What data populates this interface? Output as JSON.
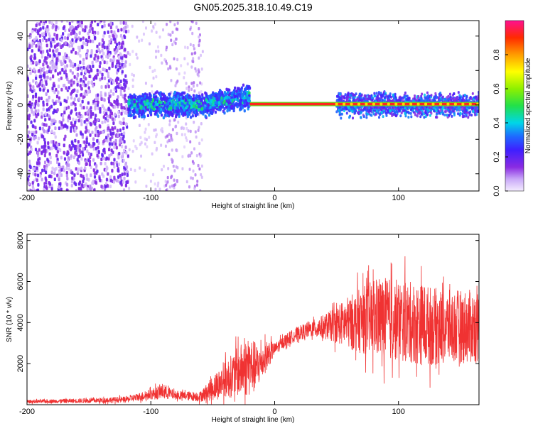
{
  "title": "GN05.2025.318.10.49.C19",
  "chart_data": [
    {
      "type": "heatmap",
      "name": "spectrogram",
      "xlabel": "Height of straight line (km)",
      "ylabel": "Frequency (Hz)",
      "xlim": [
        -200,
        165
      ],
      "ylim": [
        -50,
        49
      ],
      "xticks": [
        -200,
        -100,
        0,
        100
      ],
      "yticks": [
        -40,
        -20,
        0,
        20,
        40
      ],
      "colorbar": {
        "label": "Normalized spectral amplitude",
        "range": [
          0,
          1
        ],
        "ticks": [
          0.0,
          0.2,
          0.4,
          0.6,
          0.8
        ]
      },
      "regions": [
        {
          "x_range": [
            -200,
            -118
          ],
          "description_level": "sparse noise",
          "amplitude": [
            0.1,
            0.2
          ]
        },
        {
          "x_range": [
            -118,
            -20
          ],
          "freq_band": [
            -8,
            8
          ],
          "amplitude": [
            0.2,
            0.5
          ]
        },
        {
          "x_range": [
            -20,
            165
          ],
          "freq_band": [
            -1,
            1
          ],
          "amplitude": [
            0.8,
            1.0
          ]
        }
      ]
    },
    {
      "type": "line",
      "name": "snr",
      "xlabel": "Height of straight line (km)",
      "ylabel": "SNR (10 * v/v)",
      "xlim": [
        -200,
        165
      ],
      "ylim": [
        0,
        8300
      ],
      "xticks": [
        -200,
        -100,
        0,
        100
      ],
      "yticks": [
        2000,
        4000,
        6000,
        8000
      ],
      "color": "#f03232",
      "series_envelope": {
        "x": [
          -200,
          -150,
          -120,
          -100,
          -90,
          -80,
          -60,
          -50,
          -40,
          -30,
          -20,
          -15,
          -10,
          -5,
          0,
          10,
          20,
          30,
          40,
          50,
          60,
          70,
          80,
          90,
          100,
          110,
          120,
          130,
          140,
          150,
          160,
          165
        ],
        "mean": [
          150,
          200,
          250,
          500,
          650,
          450,
          400,
          800,
          1200,
          1600,
          1900,
          1800,
          2100,
          2500,
          2700,
          3200,
          3500,
          3700,
          3800,
          3900,
          4000,
          4100,
          4200,
          4200,
          4100,
          4000,
          3900,
          3800,
          3800,
          3800,
          3800,
          3800
        ],
        "spread": [
          80,
          120,
          150,
          250,
          400,
          200,
          250,
          600,
          900,
          1200,
          1500,
          1200,
          800,
          700,
          300,
          300,
          350,
          400,
          600,
          900,
          1300,
          1600,
          1900,
          2000,
          2000,
          2000,
          2000,
          1900,
          1800,
          1800,
          1800,
          1800
        ]
      }
    }
  ]
}
